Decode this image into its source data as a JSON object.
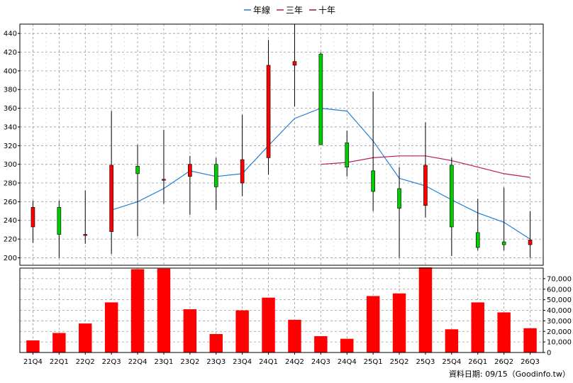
{
  "chart_data": {
    "type": "candlestick-with-volume",
    "legend": [
      {
        "name": "年線",
        "color": "#1f7fd6"
      },
      {
        "name": "三年",
        "color": "#c0185a"
      },
      {
        "name": "十年",
        "color": "#8a1c3c"
      }
    ],
    "legend_placement": "top-center",
    "grid": true,
    "categories": [
      "21Q4",
      "22Q1",
      "22Q2",
      "22Q3",
      "22Q4",
      "23Q1",
      "23Q2",
      "23Q3",
      "23Q4",
      "24Q1",
      "24Q2",
      "24Q3",
      "24Q4",
      "25Q1",
      "25Q2",
      "25Q3",
      "25Q4",
      "26Q1",
      "26Q2",
      "26Q3"
    ],
    "price_axis": {
      "ylim": [
        192,
        450
      ],
      "ticks": [
        200,
        220,
        240,
        260,
        280,
        300,
        320,
        340,
        360,
        380,
        400,
        420,
        440
      ]
    },
    "volume_axis": {
      "ylim": [
        0,
        80000
      ],
      "ticks": [
        0,
        10000,
        20000,
        30000,
        40000,
        50000,
        60000,
        70000
      ],
      "tick_labels": [
        "0",
        "10,000",
        "20,000",
        "30,000",
        "40,000",
        "50,000",
        "60,000",
        "70,000"
      ]
    },
    "candles": [
      {
        "open": 233,
        "high": 261,
        "low": 216,
        "close": 254
      },
      {
        "open": 254,
        "high": 261,
        "low": 200,
        "close": 225
      },
      {
        "open": 225,
        "high": 272,
        "low": 215,
        "close": 225
      },
      {
        "open": 228,
        "high": 357,
        "low": 204,
        "close": 299
      },
      {
        "open": 298,
        "high": 321,
        "low": 223,
        "close": 290
      },
      {
        "open": 284,
        "high": 337,
        "low": 258,
        "close": 284
      },
      {
        "open": 287,
        "high": 309,
        "low": 246,
        "close": 300
      },
      {
        "open": 300,
        "high": 307,
        "low": 251,
        "close": 276
      },
      {
        "open": 280,
        "high": 353,
        "low": 266,
        "close": 305
      },
      {
        "open": 307,
        "high": 433,
        "low": 289,
        "close": 406
      },
      {
        "open": 406,
        "high": 450,
        "low": 362,
        "close": 410
      },
      {
        "open": 418,
        "high": 420,
        "low": 321,
        "close": 321
      },
      {
        "open": 323,
        "high": 336,
        "low": 287,
        "close": 297
      },
      {
        "open": 293,
        "high": 378,
        "low": 250,
        "close": 271
      },
      {
        "open": 274,
        "high": 297,
        "low": 200,
        "close": 253
      },
      {
        "open": 256,
        "high": 345,
        "low": 243,
        "close": 299
      },
      {
        "open": 299,
        "high": 307,
        "low": 202,
        "close": 233
      },
      {
        "open": 227,
        "high": 263,
        "low": 208,
        "close": 211
      },
      {
        "open": 217,
        "high": 275,
        "low": 208,
        "close": 214
      },
      {
        "open": 214,
        "high": 250,
        "low": 200,
        "close": 219
      }
    ],
    "series": [
      {
        "name": "年線",
        "color": "#1f7fd6",
        "values": [
          null,
          null,
          null,
          251,
          260,
          274,
          293,
          287,
          290,
          320,
          349,
          360,
          357,
          325,
          285,
          277,
          262,
          248,
          238,
          220
        ]
      },
      {
        "name": "三年",
        "color": "#c0185a",
        "values": [
          null,
          null,
          null,
          null,
          null,
          null,
          null,
          null,
          null,
          null,
          null,
          300,
          302,
          307,
          309,
          309,
          304,
          297,
          290,
          286
        ]
      }
    ],
    "volume": [
      11500,
      18500,
      27500,
      47500,
      79000,
      79500,
      41000,
      17500,
      40000,
      52000,
      31000,
      15500,
      13000,
      53500,
      56000,
      81000,
      22000,
      47500,
      38000,
      23000
    ]
  },
  "footer": "資料日期: 09/15（Goodinfo.tw）",
  "colors": {
    "up": "#ff0000",
    "down": "#00cc00",
    "volume": "#ff0000",
    "grid": "#999999"
  }
}
